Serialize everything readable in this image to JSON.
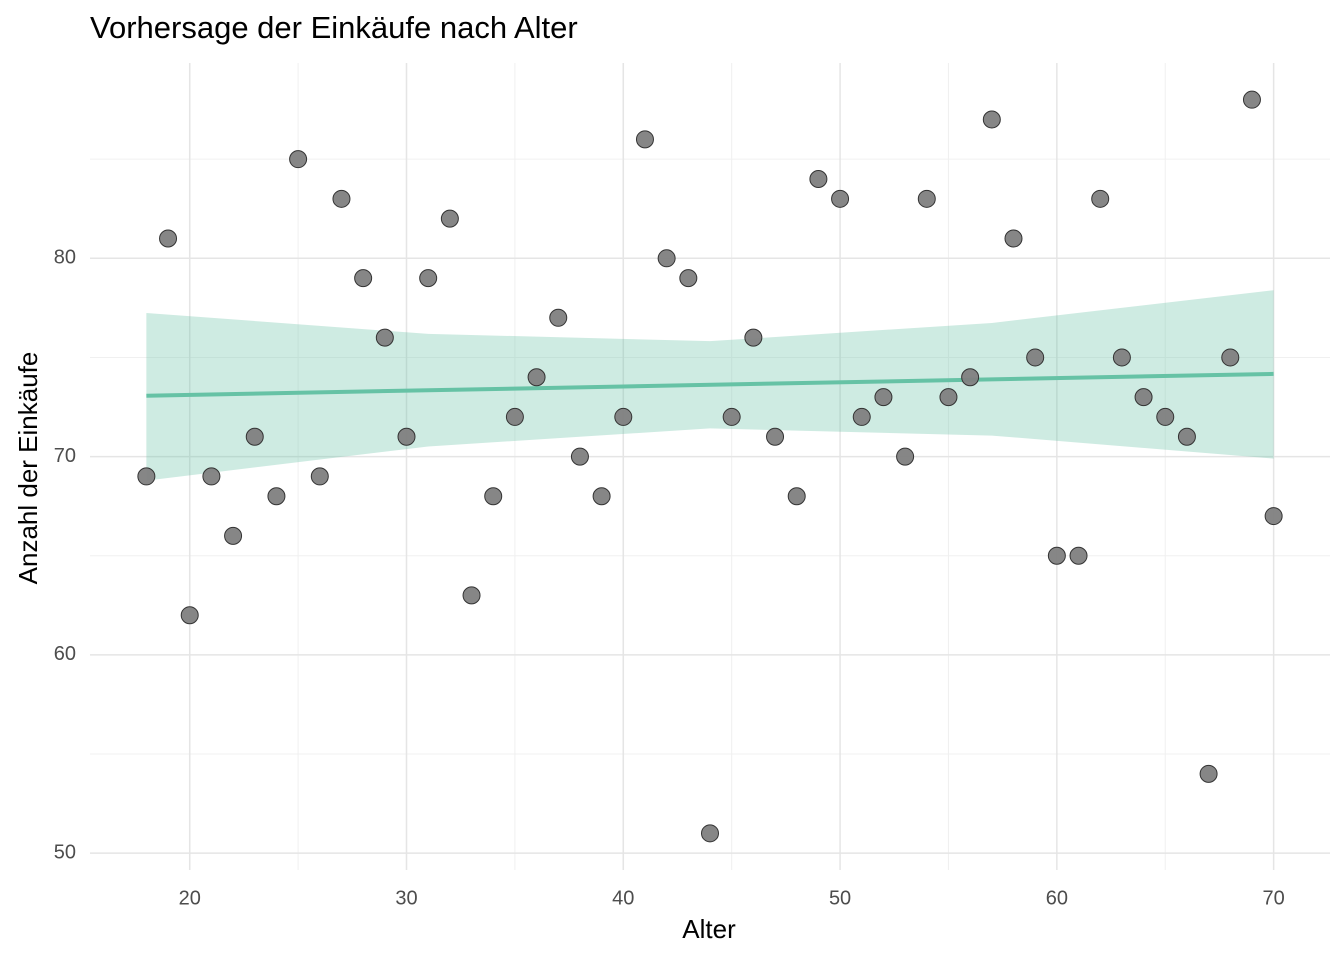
{
  "chart_data": {
    "type": "scatter",
    "title": "Vorhersage der Einkäufe nach Alter",
    "x_label": "Alter",
    "y_label": "Anzahl der Einkäufe",
    "x": [
      18,
      19,
      20,
      21,
      22,
      23,
      24,
      25,
      26,
      27,
      28,
      29,
      30,
      31,
      32,
      33,
      34,
      35,
      36,
      37,
      38,
      39,
      40,
      41,
      42,
      43,
      44,
      45,
      46,
      47,
      48,
      49,
      50,
      51,
      52,
      53,
      54,
      55,
      56,
      57,
      58,
      59,
      60,
      61,
      62,
      63,
      64,
      65,
      66,
      67,
      68,
      69,
      70
    ],
    "series": [
      {
        "color": "#808080",
        "values": [
          69,
          81,
          62,
          69,
          66,
          71,
          68,
          85,
          69,
          83,
          79,
          76,
          71,
          79,
          82,
          63,
          68,
          72,
          74,
          77,
          70,
          68,
          72,
          86,
          80,
          79,
          51,
          72,
          76,
          71,
          68,
          84,
          83,
          72,
          73,
          70,
          83,
          73,
          74,
          87,
          81,
          75,
          65,
          65,
          83,
          75,
          73,
          72,
          71,
          54,
          75,
          88,
          67
        ]
      }
    ],
    "fit": {
      "color": "#66c2a5",
      "x": [
        18,
        70
      ],
      "values": [
        73.07,
        74.17
      ]
    },
    "band": {
      "color": "#66c2a5",
      "x": [
        18,
        31,
        44,
        57,
        70
      ],
      "upper": [
        77.24,
        76.19,
        75.82,
        76.74,
        78.39
      ],
      "lower": [
        68.79,
        70.51,
        71.42,
        71.06,
        69.9
      ]
    },
    "xlim": [
      15.4,
      72.6
    ],
    "ylim": [
      49.15,
      89.85
    ],
    "xticks": [
      20,
      30,
      40,
      50,
      60,
      70
    ],
    "yticks": [
      50,
      60,
      70,
      80
    ],
    "grid": true
  }
}
